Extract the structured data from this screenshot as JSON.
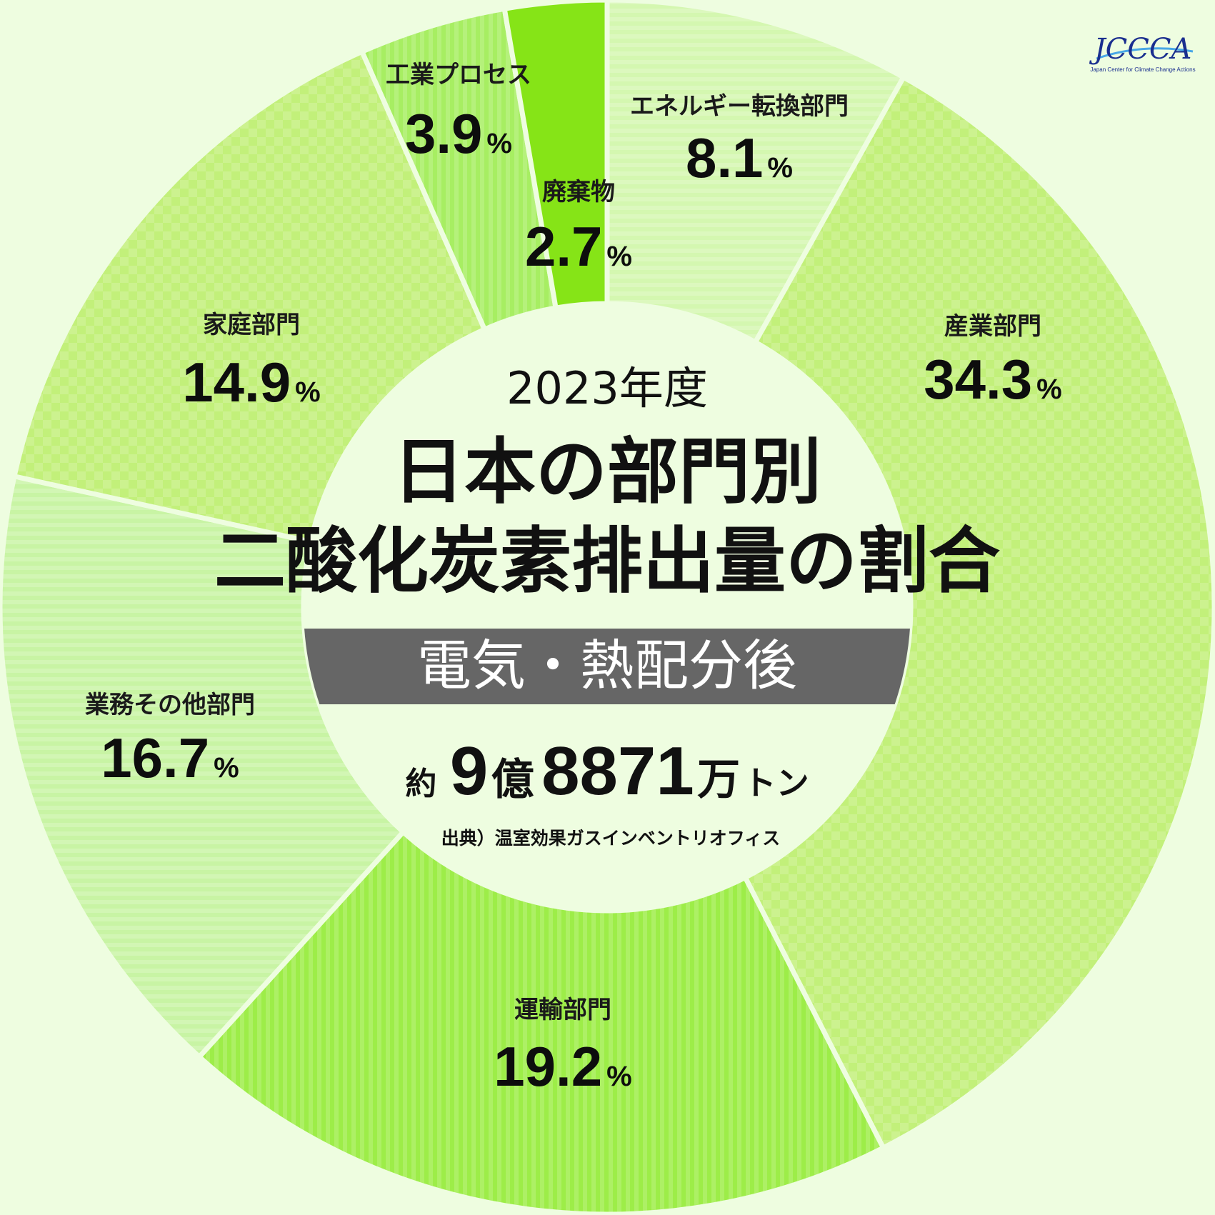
{
  "chart_data": {
    "type": "pie",
    "style": "donut",
    "start_angle_deg": 0,
    "direction": "clockwise",
    "year": "2023年度",
    "title_line1": "日本の部門別",
    "title_line2": "二酸化炭素排出量の割合",
    "banner": "電気・熱配分後",
    "total": {
      "prefix": "約",
      "num1": "9",
      "unit1": "億",
      "num2": "8871",
      "unit2": "万",
      "unit3": "トン"
    },
    "source": "出典）温室効果ガスインベントリオフィス",
    "slices": [
      {
        "label": "エネルギー転換部門",
        "value": 8.1,
        "display": "8.1",
        "color": "#d4f7b0",
        "pattern": "hstripe"
      },
      {
        "label": "産業部門",
        "value": 34.3,
        "display": "34.3",
        "color": "#c2f07a",
        "pattern": "check"
      },
      {
        "label": "運輸部門",
        "value": 19.2,
        "display": "19.2",
        "color": "#9ded48",
        "pattern": "vstripe"
      },
      {
        "label": "業務その他部門",
        "value": 16.7,
        "display": "16.7",
        "color": "#c8f4a4",
        "pattern": "hstripe"
      },
      {
        "label": "家庭部門",
        "value": 14.9,
        "display": "14.9",
        "color": "#c2f07a",
        "pattern": "check"
      },
      {
        "label": "工業プロセス",
        "value": 3.9,
        "display": "3.9",
        "color": "#a7ee62",
        "pattern": "vstripe"
      },
      {
        "label": "廃棄物",
        "value": 2.7,
        "display": "2.7",
        "color": "#86e417",
        "pattern": "none"
      }
    ],
    "percent_sign": "%"
  },
  "logo": {
    "text": "JCCCA",
    "subtitle": "Japan Center for Climate Change Actions",
    "color": "#1a2f8f"
  }
}
